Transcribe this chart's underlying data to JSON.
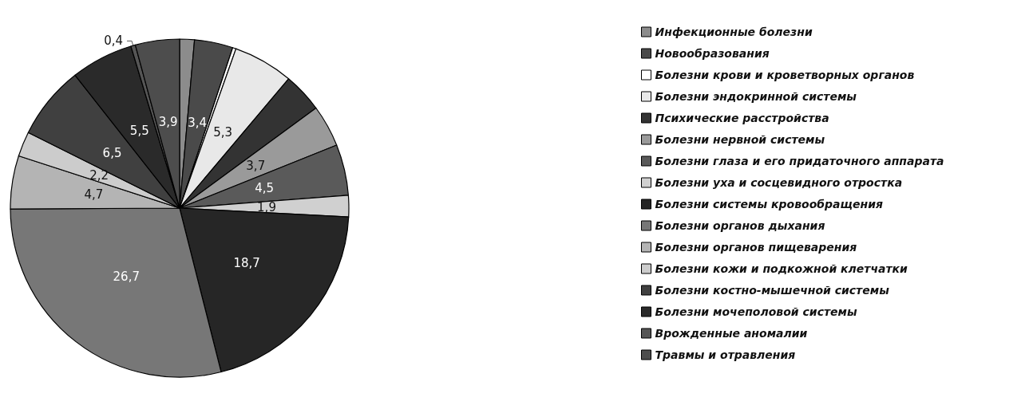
{
  "chart_data": {
    "type": "pie",
    "categories": [
      "Инфекционные болезни",
      "Новообразования",
      "Болезни крови и кроветворных органов",
      "Болезни эндокринной системы",
      "Психические расстройства",
      "Болезни нервной системы",
      "Болезни глаза и его придаточного аппарата",
      "Болезни уха и сосцевидного отростка",
      "Болезни системы кровообращения",
      "Болезни органов дыхания",
      "Болезни органов пищеварения",
      "Болезни кожи и подкожной клетчатки",
      "Болезни костно-мышечной системы",
      "Болезни мочеполовой системы",
      "Врожденные аномалии",
      "Травмы и отравления"
    ],
    "values": [
      1.3,
      3.4,
      0.3,
      5.3,
      3.5,
      3.7,
      4.5,
      1.9,
      18.7,
      26.7,
      4.7,
      2.2,
      6.5,
      5.5,
      0.4,
      3.9
    ],
    "value_labels": [
      null,
      "3,4",
      null,
      "5,3",
      null,
      "3,7",
      "4,5",
      "1,9",
      "18,7",
      "26,7",
      "4,7",
      "2,2",
      "6,5",
      "5,5",
      "0,4",
      "3,9"
    ],
    "colors": [
      "#8c8c8c",
      "#4a4a4a",
      "#ffffff",
      "#e8e8e8",
      "#333333",
      "#9a9a9a",
      "#5a5a5a",
      "#d0d0d0",
      "#262626",
      "#777777",
      "#b4b4b4",
      "#cccccc",
      "#404040",
      "#2a2a2a",
      "#555555",
      "#4d4d4d"
    ],
    "legend": "right"
  }
}
